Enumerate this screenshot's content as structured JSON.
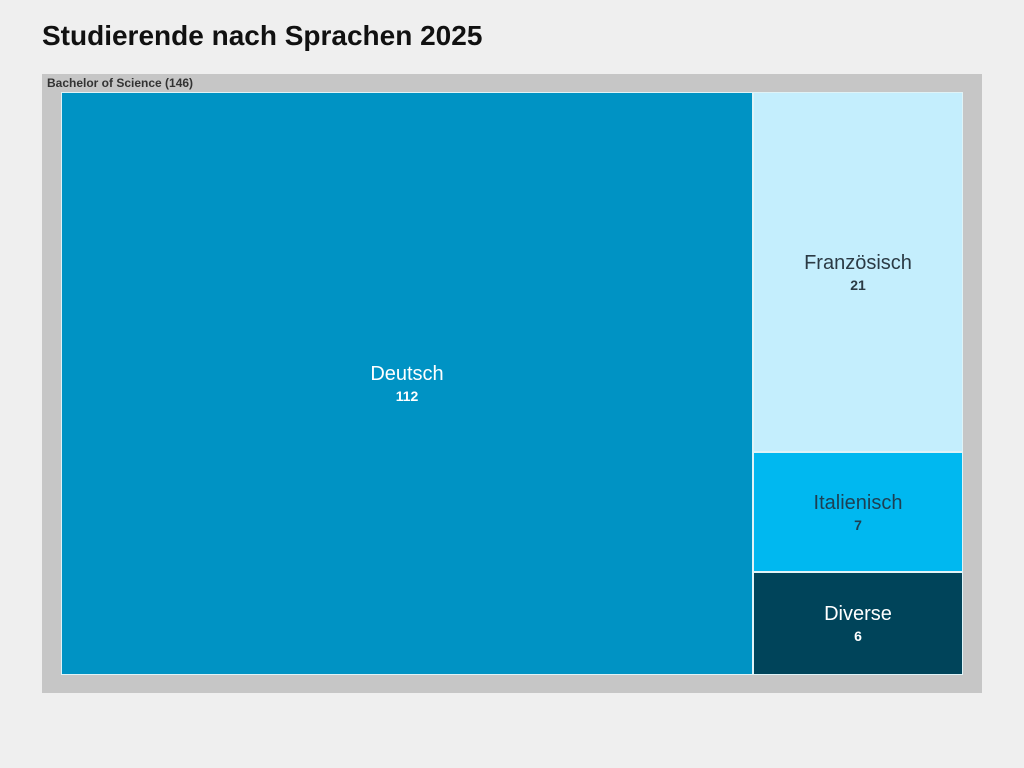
{
  "title": "Studierende nach Sprachen 2025",
  "chart_data": {
    "type": "treemap",
    "title": "Studierende nach Sprachen 2025",
    "group": {
      "label": "Bachelor of Science (146)",
      "name": "Bachelor of Science",
      "total": 146
    },
    "items": [
      {
        "name": "Deutsch",
        "value": 112,
        "value_label": "112",
        "color": "#0093c4",
        "text_color": "#ffffff"
      },
      {
        "name": "Französisch",
        "value": 21,
        "value_label": "21",
        "color": "#c4eefd",
        "text_color": "#2b3a44"
      },
      {
        "name": "Italienisch",
        "value": 7,
        "value_label": "7",
        "color": "#00b8f0",
        "text_color": "#1d3f52"
      },
      {
        "name": "Diverse",
        "value": 6,
        "value_label": "6",
        "color": "#00445a",
        "text_color": "#ffffff"
      }
    ]
  }
}
